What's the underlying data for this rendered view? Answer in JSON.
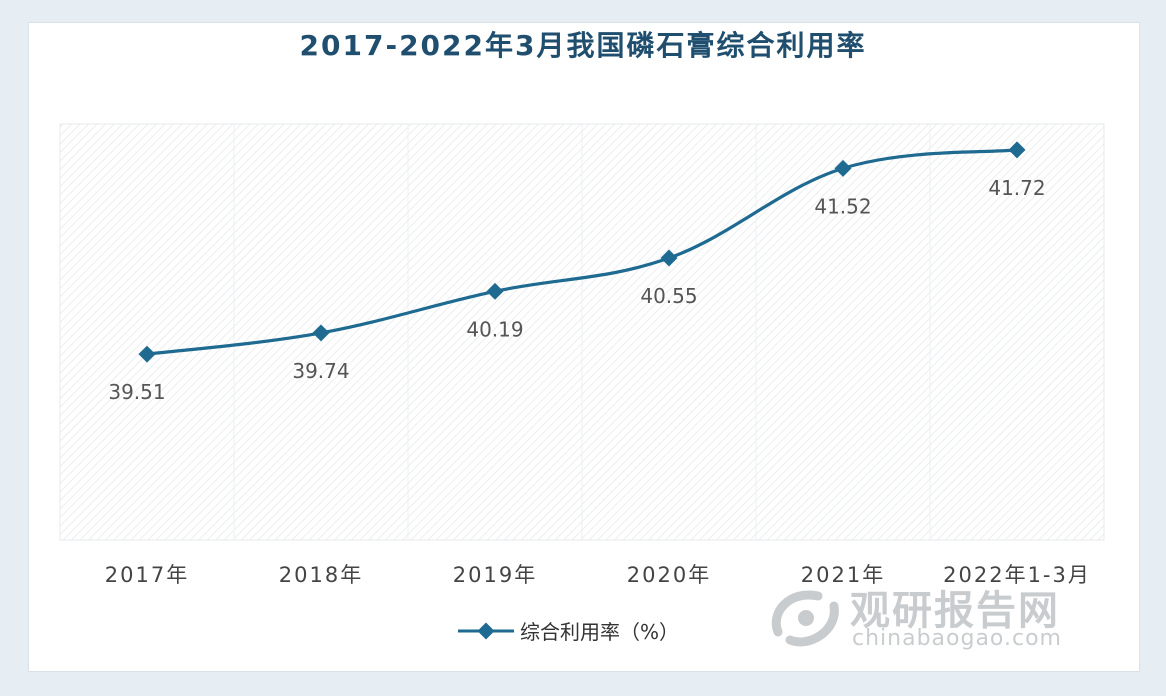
{
  "chart_data": {
    "type": "line",
    "title": "2017-2022年3月我国磷石膏综合利用率",
    "categories": [
      "2017年",
      "2018年",
      "2019年",
      "2020年",
      "2021年",
      "2022年1-3月"
    ],
    "series": [
      {
        "name": "综合利用率（%）",
        "values": [
          39.51,
          39.74,
          40.19,
          40.55,
          41.52,
          41.72
        ]
      }
    ],
    "data_labels": [
      "39.51",
      "39.74",
      "40.19",
      "40.55",
      "41.52",
      "41.72"
    ],
    "xlabel": "",
    "ylabel": "",
    "ylim": [
      37.5,
      42.0
    ],
    "grid": false,
    "legend_position": "bottom-center",
    "line_color": "#1e6a90"
  },
  "watermark": {
    "brand": "观研报告网",
    "url": "chinabaogao.com"
  }
}
